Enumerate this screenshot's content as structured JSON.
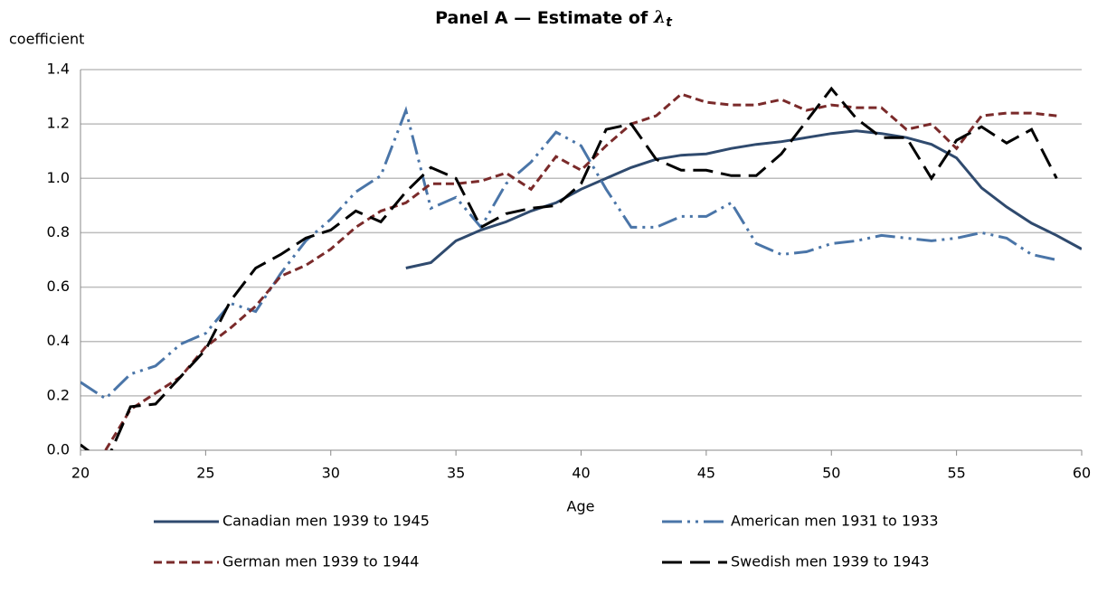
{
  "chart_data": {
    "type": "line",
    "title": "Panel A — Estimate of",
    "title_symbol": "λ",
    "title_subscript": "t",
    "y_label": "coefficient",
    "x_label": "Age",
    "x": [
      20,
      21,
      22,
      23,
      24,
      25,
      26,
      27,
      28,
      29,
      30,
      31,
      32,
      33,
      34,
      35,
      36,
      37,
      38,
      39,
      40,
      41,
      42,
      43,
      44,
      45,
      46,
      47,
      48,
      49,
      50,
      51,
      52,
      53,
      54,
      55,
      56,
      57,
      58,
      59,
      60
    ],
    "xlim": [
      20,
      60
    ],
    "xticks": [
      20,
      25,
      30,
      35,
      40,
      45,
      50,
      55,
      60
    ],
    "ylim": [
      0,
      1.4
    ],
    "yticks": [
      {
        "value": 0,
        "label": "0.0"
      },
      {
        "value": 0.2,
        "label": "0.2"
      },
      {
        "value": 0.4,
        "label": "0.4"
      },
      {
        "value": 0.6,
        "label": "0.6"
      },
      {
        "value": 0.8,
        "label": "0.8"
      },
      {
        "value": 1,
        "label": "1.0"
      },
      {
        "value": 1.2,
        "label": "1.2"
      },
      {
        "value": 1.4,
        "label": "1.4"
      }
    ],
    "grid": true,
    "series": [
      {
        "name": "Canadian men 1939 to 1945",
        "color": "#2f4a6e",
        "style": "solid",
        "values": [
          null,
          null,
          null,
          null,
          null,
          null,
          null,
          null,
          null,
          null,
          null,
          null,
          null,
          0.67,
          0.69,
          0.77,
          0.81,
          0.84,
          0.88,
          0.91,
          0.96,
          1.0,
          1.04,
          1.07,
          1.085,
          1.09,
          1.11,
          1.125,
          1.135,
          1.15,
          1.165,
          1.175,
          1.165,
          1.15,
          1.125,
          1.075,
          0.965,
          0.895,
          0.835,
          0.79,
          0.74
        ]
      },
      {
        "name": "American men 1931 to 1933",
        "color": "#4a75a8",
        "style": "dash-dot-dot",
        "values": [
          0.25,
          0.19,
          0.28,
          0.31,
          0.39,
          0.43,
          0.54,
          0.51,
          0.65,
          0.77,
          0.85,
          0.95,
          1.01,
          1.25,
          0.89,
          0.93,
          0.82,
          0.98,
          1.06,
          1.17,
          1.12,
          0.96,
          0.82,
          0.82,
          0.86,
          0.86,
          0.91,
          0.76,
          0.72,
          0.73,
          0.76,
          0.77,
          0.79,
          0.78,
          0.77,
          0.78,
          0.8,
          0.78,
          0.72,
          0.7,
          null
        ]
      },
      {
        "name": "German men 1939 to 1944",
        "color": "#7a2a2a",
        "style": "short-dash",
        "values": [
          null,
          0.0,
          0.15,
          0.21,
          0.27,
          0.38,
          0.45,
          0.53,
          0.64,
          0.68,
          0.74,
          0.82,
          0.88,
          0.91,
          0.98,
          0.98,
          0.99,
          1.02,
          0.96,
          1.08,
          1.03,
          1.12,
          1.2,
          1.23,
          1.31,
          1.28,
          1.27,
          1.27,
          1.29,
          1.25,
          1.27,
          1.26,
          1.26,
          1.18,
          1.2,
          1.11,
          1.23,
          1.24,
          1.24,
          1.23,
          null
        ]
      },
      {
        "name": "Swedish men 1939 to 1943",
        "color": "#000000",
        "style": "long-dash",
        "values": [
          0.02,
          -0.05,
          0.16,
          0.17,
          0.27,
          0.37,
          0.55,
          0.67,
          0.72,
          0.78,
          0.81,
          0.88,
          0.84,
          0.95,
          1.04,
          1.0,
          0.82,
          0.87,
          0.89,
          0.9,
          0.98,
          1.18,
          1.2,
          1.07,
          1.03,
          1.03,
          1.01,
          1.01,
          1.09,
          1.21,
          1.33,
          1.22,
          1.15,
          1.15,
          1.0,
          1.14,
          1.19,
          1.13,
          1.18,
          1.0,
          null
        ]
      }
    ]
  }
}
